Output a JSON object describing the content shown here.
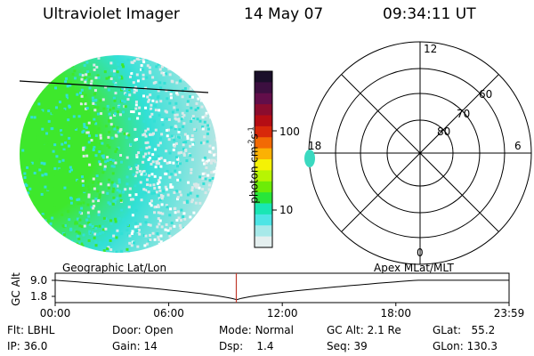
{
  "header": {
    "title": "Ultraviolet Imager",
    "date": "14 May 07",
    "time": "09:34:11 UT"
  },
  "colorbar": {
    "unit_label": "photon cm",
    "unit_exp": "-2",
    "unit_s": "s",
    "unit_exp2": "-1",
    "ticks": [
      "100",
      "10"
    ],
    "colors": [
      "#1a0f2a",
      "#3c0f40",
      "#620e4a",
      "#8b0c2e",
      "#b50d14",
      "#d8280a",
      "#f26a04",
      "#fbb103",
      "#f5f205",
      "#b7f503",
      "#6cec07",
      "#28e63a",
      "#19e6b4",
      "#4de5e5",
      "#a7e9e9",
      "#e4efef"
    ]
  },
  "image_panel": {
    "name": "uv-disk-image",
    "color_bright": "#3ee82c",
    "color_mid": "#32e0d6",
    "color_low": "#dbe8e8"
  },
  "polar_plot": {
    "lat_labels": [
      "60",
      "70",
      "80"
    ],
    "mlt_labels": {
      "top": "12",
      "left": "18",
      "right": "6",
      "bottom": "0"
    }
  },
  "timeline": {
    "left_label": "Geographic Lat/Lon",
    "right_label": "Apex  MLat/MLT",
    "axis_label": "GC Alt",
    "y_ticks": [
      "9.0",
      "1.8"
    ],
    "x_ticks": [
      "00:00",
      "06:00",
      "12:00",
      "18:00",
      "23:59"
    ],
    "current_time_hours": 9.57,
    "marker_color": "#c0392b"
  },
  "status": {
    "filter_label": "Flt:",
    "filter_value": "LBHL",
    "door_label": "Door:",
    "door_value": "Open",
    "mode_label": "Mode:",
    "mode_value": "Normal",
    "gcalt_label": "GC Alt:",
    "gcalt_value": "2.1 Re",
    "glat_label": "GLat:",
    "glat_value": "55.2",
    "ip_label": "IP:",
    "ip_value": "36.0",
    "gain_label": "Gain:",
    "gain_value": "14",
    "dsp_label": "Dsp:",
    "dsp_value": "1.4",
    "seq_label": "Seq:",
    "seq_value": "39",
    "glon_label": "GLon:",
    "glon_value": "130.3"
  }
}
